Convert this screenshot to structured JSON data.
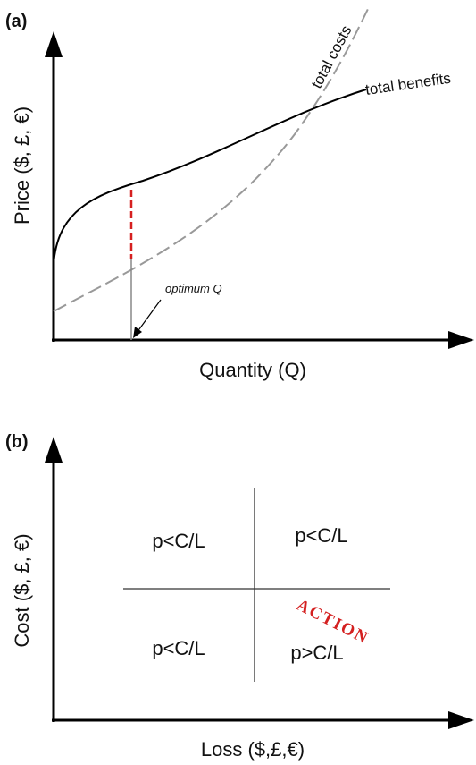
{
  "panel_a": {
    "label": "(a)",
    "y_axis_label": "Price ($, £, €)",
    "x_axis_label": "Quantity (Q)",
    "curve_labels": {
      "costs": "total costs",
      "benefits": "total benefits"
    },
    "annotation": "optimum Q"
  },
  "panel_b": {
    "label": "(b)",
    "y_axis_label": "Cost ($, £, €)",
    "x_axis_label": "Loss ($,£,€)",
    "quadrants": [
      "p<C/L",
      "p<C/L",
      "p<C/L",
      "p>C/L"
    ],
    "action": "ACTION"
  }
}
